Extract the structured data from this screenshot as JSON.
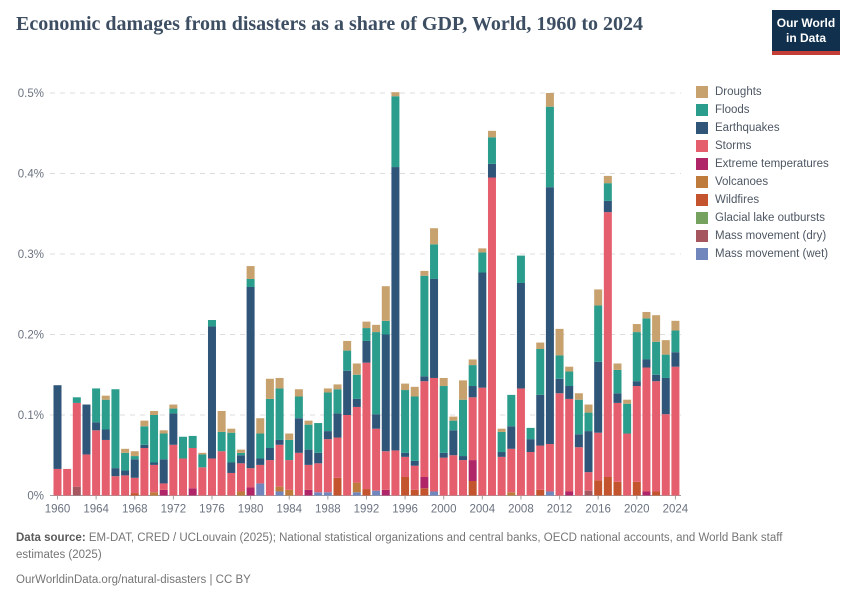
{
  "header": {
    "title": "Economic damages from disasters as a share of GDP, World, 1960 to 2024",
    "logo_line1": "Our World",
    "logo_line2": "in Data",
    "logo_bg": "#10304e",
    "logo_accent": "#c43e38"
  },
  "footer": {
    "source_label": "Data source:",
    "source_text": " EM-DAT, CRED / UCLouvain (2025); National statistical organizations and central banks, OECD national accounts, and World Bank staff estimates (2025)",
    "license_text": "OurWorldinData.org/natural-disasters | CC BY"
  },
  "chart_data": {
    "type": "bar",
    "stacked": true,
    "title": "Economic damages from disasters as a share of GDP, World, 1960 to 2024",
    "xlabel": "",
    "ylabel": "share of GDP",
    "ylim": [
      0,
      0.5
    ],
    "grid": "dashed-horizontal",
    "legend_position": "right",
    "y_ticks": [
      {
        "value": 0.0,
        "label": "0%"
      },
      {
        "value": 0.1,
        "label": "0.1%"
      },
      {
        "value": 0.2,
        "label": "0.2%"
      },
      {
        "value": 0.3,
        "label": "0.3%"
      },
      {
        "value": 0.4,
        "label": "0.4%"
      },
      {
        "value": 0.5,
        "label": "0.5%"
      }
    ],
    "x_tick_labels": [
      "1960",
      "1964",
      "1968",
      "1972",
      "1976",
      "1980",
      "1984",
      "1988",
      "1992",
      "1996",
      "2000",
      "2004",
      "2008",
      "2012",
      "2016",
      "2020",
      "2024"
    ],
    "categories": [
      1960,
      1961,
      1962,
      1963,
      1964,
      1965,
      1966,
      1967,
      1968,
      1969,
      1970,
      1971,
      1972,
      1973,
      1974,
      1975,
      1976,
      1977,
      1978,
      1979,
      1980,
      1981,
      1982,
      1983,
      1984,
      1985,
      1986,
      1987,
      1988,
      1989,
      1990,
      1991,
      1992,
      1993,
      1994,
      1995,
      1996,
      1997,
      1998,
      1999,
      2000,
      2001,
      2002,
      2003,
      2004,
      2005,
      2006,
      2007,
      2008,
      2009,
      2010,
      2011,
      2012,
      2013,
      2014,
      2015,
      2016,
      2017,
      2018,
      2019,
      2020,
      2021,
      2022,
      2023,
      2024
    ],
    "units": "% of GDP",
    "series": [
      {
        "name": "Mass movement (wet)",
        "color": "#7286be",
        "values": [
          0,
          0,
          0,
          0,
          0,
          0,
          0,
          0,
          0,
          0,
          0,
          0,
          0,
          0,
          0,
          0,
          0,
          0,
          0,
          0,
          0,
          0.015,
          0,
          0.005,
          0,
          0,
          0,
          0.004,
          0.004,
          0,
          0,
          0.004,
          0,
          0.006,
          0,
          0,
          0,
          0,
          0,
          0.005,
          0,
          0,
          0,
          0,
          0,
          0,
          0,
          0,
          0,
          0,
          0,
          0.005,
          0,
          0,
          0,
          0,
          0,
          0,
          0,
          0,
          0,
          0,
          0,
          0,
          0
        ]
      },
      {
        "name": "Mass movement (dry)",
        "color": "#a5565f",
        "values": [
          0,
          0,
          0.011,
          0,
          0,
          0,
          0,
          0,
          0,
          0,
          0,
          0,
          0,
          0,
          0,
          0,
          0,
          0,
          0,
          0,
          0,
          0,
          0,
          0,
          0,
          0,
          0,
          0,
          0,
          0,
          0,
          0,
          0,
          0,
          0,
          0,
          0,
          0,
          0,
          0,
          0,
          0,
          0,
          0,
          0,
          0,
          0,
          0,
          0,
          0,
          0,
          0,
          0,
          0,
          0,
          0.006,
          0,
          0,
          0,
          0,
          0,
          0,
          0,
          0,
          0
        ]
      },
      {
        "name": "Glacial lake outbursts",
        "color": "#75a25f",
        "values": [
          0,
          0,
          0,
          0,
          0,
          0,
          0,
          0,
          0,
          0,
          0,
          0,
          0,
          0,
          0,
          0,
          0,
          0,
          0,
          0,
          0,
          0,
          0,
          0,
          0,
          0,
          0,
          0,
          0,
          0,
          0,
          0,
          0,
          0,
          0,
          0,
          0,
          0,
          0,
          0,
          0,
          0,
          0,
          0,
          0,
          0,
          0,
          0,
          0,
          0,
          0,
          0,
          0,
          0,
          0,
          0,
          0,
          0,
          0,
          0,
          0,
          0,
          0,
          0,
          0
        ]
      },
      {
        "name": "Wildfires",
        "color": "#c4542e",
        "values": [
          0,
          0,
          0,
          0,
          0,
          0,
          0,
          0,
          0.003,
          0,
          0,
          0,
          0,
          0,
          0,
          0,
          0,
          0,
          0,
          0,
          0,
          0,
          0,
          0,
          0,
          0,
          0,
          0,
          0,
          0.022,
          0,
          0,
          0.008,
          0,
          0,
          0,
          0.023,
          0.007,
          0.009,
          0,
          0,
          0,
          0,
          0.018,
          0,
          0,
          0,
          0,
          0,
          0,
          0.007,
          0,
          0,
          0,
          0,
          0,
          0.019,
          0.023,
          0.017,
          0,
          0.017,
          0,
          0.005,
          0,
          0
        ]
      },
      {
        "name": "Volcanoes",
        "color": "#be7b3b",
        "values": [
          0,
          0,
          0,
          0,
          0,
          0,
          0,
          0,
          0,
          0,
          0.004,
          0,
          0,
          0,
          0,
          0,
          0,
          0,
          0,
          0.005,
          0,
          0,
          0,
          0.006,
          0.007,
          0,
          0,
          0,
          0,
          0,
          0,
          0.012,
          0,
          0,
          0,
          0,
          0,
          0,
          0,
          0,
          0,
          0,
          0,
          0,
          0,
          0,
          0,
          0.004,
          0,
          0,
          0,
          0,
          0,
          0,
          0,
          0,
          0,
          0,
          0,
          0,
          0,
          0,
          0,
          0,
          0
        ]
      },
      {
        "name": "Extreme temperatures",
        "color": "#b02568",
        "values": [
          0,
          0,
          0,
          0,
          0,
          0,
          0,
          0,
          0,
          0,
          0,
          0.007,
          0,
          0,
          0.009,
          0,
          0,
          0,
          0,
          0,
          0.01,
          0,
          0,
          0,
          0,
          0,
          0.007,
          0,
          0,
          0,
          0,
          0,
          0,
          0,
          0.007,
          0,
          0,
          0,
          0.014,
          0,
          0,
          0,
          0,
          0.026,
          0,
          0,
          0,
          0,
          0,
          0,
          0,
          0,
          0,
          0.005,
          0,
          0,
          0,
          0,
          0,
          0,
          0,
          0.005,
          0,
          0,
          0
        ]
      },
      {
        "name": "Storms",
        "color": "#e55e6d",
        "values": [
          0.033,
          0.033,
          0.104,
          0.051,
          0.081,
          0.069,
          0.024,
          0.025,
          0.019,
          0.059,
          0.034,
          0.008,
          0.063,
          0.046,
          0.05,
          0.035,
          0.046,
          0.055,
          0.028,
          0.035,
          0.024,
          0.023,
          0.044,
          0.052,
          0.037,
          0.053,
          0.031,
          0.036,
          0.066,
          0.05,
          0.1,
          0.094,
          0.157,
          0.077,
          0.048,
          0.056,
          0.025,
          0.03,
          0.119,
          0.141,
          0.047,
          0.05,
          0.044,
          0.078,
          0.134,
          0.395,
          0.048,
          0.054,
          0.133,
          0.054,
          0.055,
          0.059,
          0.127,
          0.115,
          0.06,
          0.023,
          0.059,
          0.329,
          0.098,
          0.077,
          0.119,
          0.154,
          0.137,
          0.101,
          0.16
        ]
      },
      {
        "name": "Earthquakes",
        "color": "#2f5579",
        "values": [
          0.104,
          0,
          0,
          0.062,
          0.01,
          0.013,
          0.01,
          0.006,
          0.023,
          0.004,
          0.003,
          0.03,
          0.039,
          0,
          0,
          0,
          0.164,
          0,
          0.013,
          0.01,
          0.225,
          0.008,
          0.015,
          0.006,
          0,
          0.043,
          0.019,
          0.013,
          0.01,
          0.03,
          0.055,
          0.01,
          0.027,
          0.018,
          0.145,
          0.352,
          0.005,
          0.006,
          0.006,
          0.123,
          0.006,
          0.031,
          0.005,
          0.014,
          0.143,
          0.017,
          0.006,
          0.028,
          0.131,
          0.016,
          0.063,
          0.319,
          0.018,
          0.016,
          0.016,
          0.051,
          0.088,
          0.014,
          0.012,
          0,
          0.006,
          0.01,
          0.008,
          0.045,
          0.018
        ]
      },
      {
        "name": "Floods",
        "color": "#2b9d8d",
        "values": [
          0,
          0,
          0.007,
          0,
          0.042,
          0.037,
          0.098,
          0.022,
          0.004,
          0.023,
          0.059,
          0.032,
          0.006,
          0.027,
          0.015,
          0.016,
          0.008,
          0.024,
          0.037,
          0.003,
          0.01,
          0.031,
          0.061,
          0.064,
          0.025,
          0.027,
          0.031,
          0.037,
          0.048,
          0.03,
          0.025,
          0.03,
          0.016,
          0.102,
          0.017,
          0.088,
          0.078,
          0.08,
          0.125,
          0.043,
          0.083,
          0.012,
          0.07,
          0.026,
          0.025,
          0.033,
          0.025,
          0.039,
          0.034,
          0.014,
          0.057,
          0.1,
          0.029,
          0.018,
          0.043,
          0.023,
          0.07,
          0.022,
          0.029,
          0.037,
          0.061,
          0.051,
          0.041,
          0.029,
          0.027
        ]
      },
      {
        "name": "Droughts",
        "color": "#c8a26e",
        "values": [
          0,
          0,
          0,
          0,
          0,
          0.005,
          0,
          0.005,
          0.006,
          0.007,
          0.005,
          0.004,
          0.005,
          0,
          0,
          0.002,
          0,
          0.026,
          0.005,
          0.004,
          0.016,
          0.019,
          0.025,
          0.013,
          0.008,
          0.009,
          0.005,
          0,
          0.005,
          0.006,
          0.012,
          0.014,
          0.008,
          0.009,
          0.043,
          0.005,
          0.008,
          0.012,
          0.006,
          0.02,
          0.01,
          0.005,
          0.024,
          0.007,
          0.005,
          0.008,
          0.004,
          0,
          0,
          0,
          0.008,
          0.017,
          0.033,
          0.006,
          0.008,
          0.01,
          0.02,
          0.009,
          0.008,
          0.005,
          0.01,
          0.008,
          0.033,
          0.018,
          0.012
        ]
      }
    ],
    "legend_order_top_to_bottom": [
      "Droughts",
      "Floods",
      "Earthquakes",
      "Storms",
      "Extreme temperatures",
      "Volcanoes",
      "Wildfires",
      "Glacial lake outbursts",
      "Mass movement (dry)",
      "Mass movement (wet)"
    ],
    "axis_colors": {
      "tick_text": "#6b7380",
      "gridline": "#dddddd",
      "baseline": "#a0a0a0"
    }
  }
}
